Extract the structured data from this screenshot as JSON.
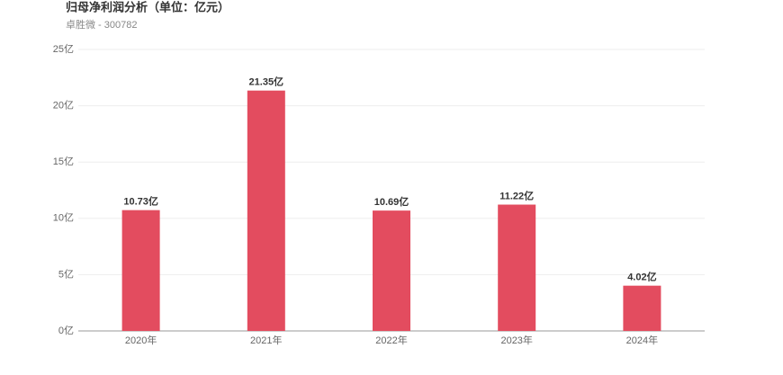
{
  "chart_data": {
    "type": "bar",
    "title": "归母净利润分析（单位：亿元）",
    "subtitle": "卓胜微 - 300782",
    "categories": [
      "2020年",
      "2021年",
      "2022年",
      "2023年",
      "2024年"
    ],
    "values": [
      10.73,
      21.35,
      10.69,
      11.22,
      4.02
    ],
    "value_labels": [
      "10.73亿",
      "21.35亿",
      "10.69亿",
      "11.22亿",
      "4.02亿"
    ],
    "color": "#e34c5f",
    "ylim": [
      0,
      25
    ],
    "yticks": [
      {
        "value": 0,
        "label": "0亿"
      },
      {
        "value": 5,
        "label": "5亿"
      },
      {
        "value": 10,
        "label": "10亿"
      },
      {
        "value": 15,
        "label": "15亿"
      },
      {
        "value": 20,
        "label": "20亿"
      },
      {
        "value": 25,
        "label": "25亿"
      }
    ],
    "grid": true
  }
}
